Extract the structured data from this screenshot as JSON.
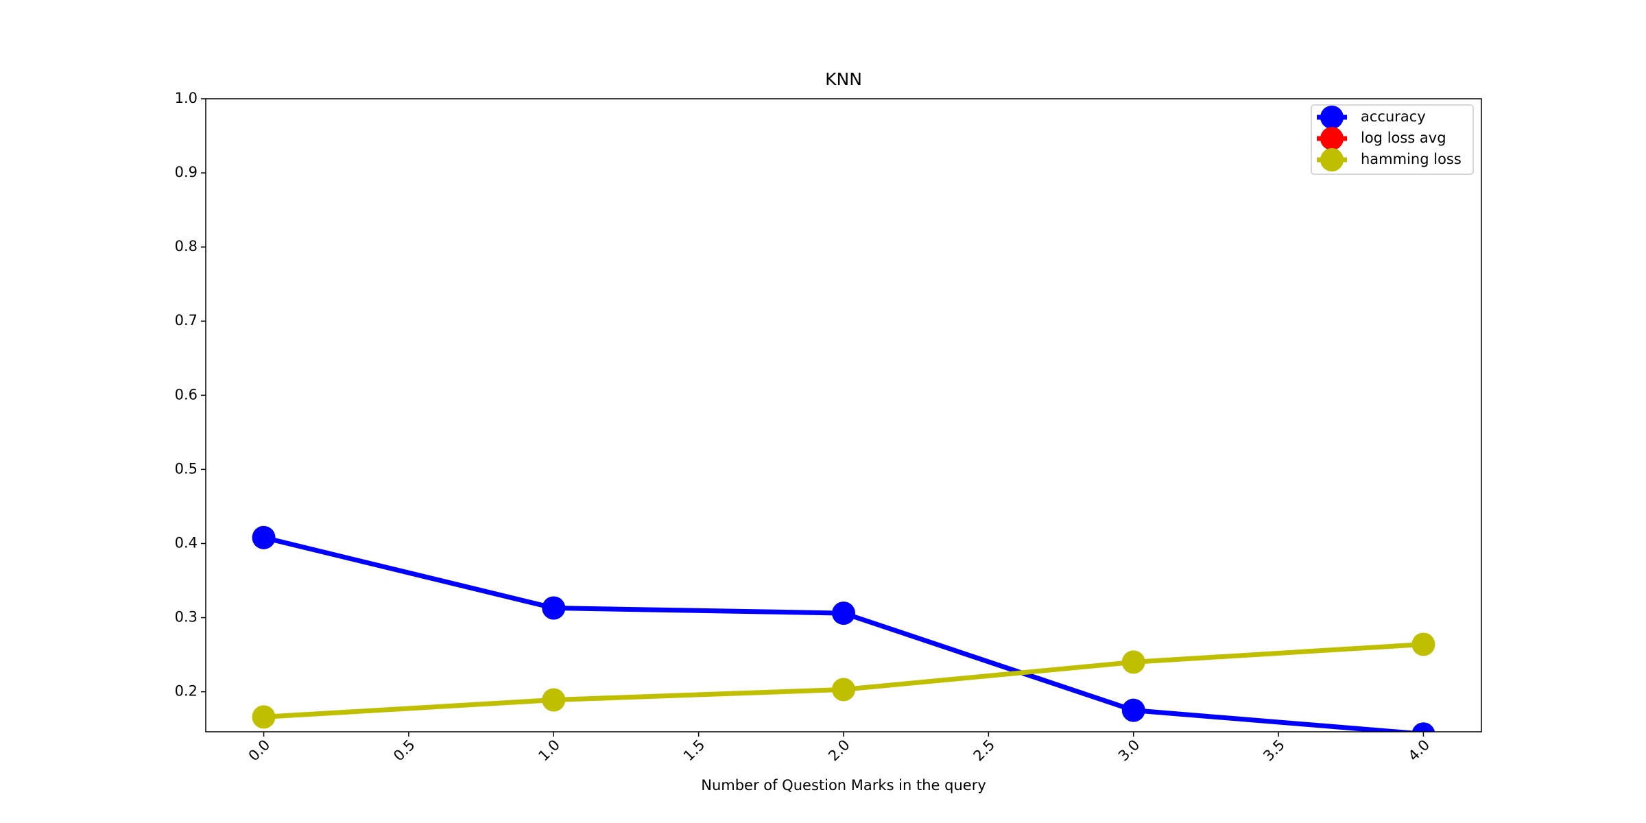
{
  "chart_data": {
    "type": "line",
    "title": "KNN",
    "xlabel": "Number of Question Marks in the query",
    "x": [
      0,
      1,
      2,
      3,
      4
    ],
    "series": [
      {
        "name": "accuracy",
        "color": "#0000ff",
        "values": [
          0.408,
          0.313,
          0.306,
          0.175,
          0.143
        ]
      },
      {
        "name": "log loss avg",
        "color": "#ff0000",
        "values": [
          null,
          null,
          null,
          null,
          null
        ]
      },
      {
        "name": "hamming loss",
        "color": "#bfbf00",
        "values": [
          0.166,
          0.189,
          0.203,
          0.24,
          0.264
        ]
      }
    ],
    "xlim": [
      -0.2,
      4.2
    ],
    "xticks": [
      {
        "value": 0,
        "label": "0.0"
      },
      0.5,
      {
        "value": 1,
        "label": "1.0"
      },
      1.5,
      {
        "value": 2,
        "label": "2.0"
      },
      2.5,
      {
        "value": 3,
        "label": "3.0"
      },
      3.5,
      {
        "value": 4,
        "label": "4.0"
      }
    ],
    "ylim": [
      0.146,
      1.0
    ],
    "yticks": [
      0.2,
      0.3,
      0.4,
      0.5,
      0.6,
      0.7,
      0.8,
      0.9,
      {
        "value": 1,
        "label": "1.0"
      }
    ],
    "legend": "upper right",
    "grid": false
  }
}
